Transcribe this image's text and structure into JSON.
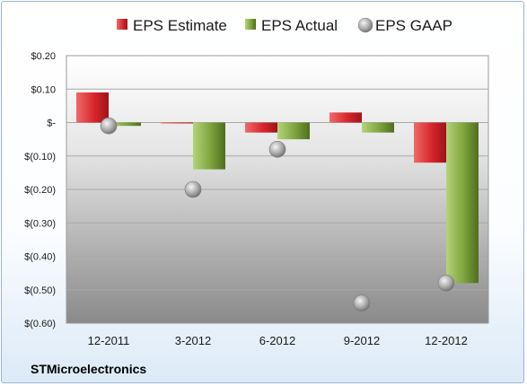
{
  "chart_data": {
    "type": "bar",
    "categories": [
      "12-2011",
      "3-2012",
      "6-2012",
      "9-2012",
      "12-2012"
    ],
    "series": [
      {
        "name": "EPS Estimate",
        "values": [
          0.09,
          0.0,
          -0.03,
          0.03,
          -0.12
        ],
        "color": "#d7262c"
      },
      {
        "name": "EPS Actual",
        "values": [
          -0.01,
          -0.14,
          -0.05,
          -0.03,
          -0.48
        ],
        "color": "#7ea33c"
      },
      {
        "name": "EPS GAAP",
        "values": [
          -0.01,
          -0.2,
          -0.08,
          -0.54,
          -0.48
        ],
        "color": "#a9a9a9",
        "style": "marker"
      }
    ],
    "yticks": [
      "$0.20",
      "$0.10",
      "$-",
      "$(0.10)",
      "$(0.20)",
      "$(0.30)",
      "$(0.40)",
      "$(0.50)",
      "$(0.60)"
    ],
    "ylim": [
      -0.6,
      0.2
    ],
    "grid": true,
    "legend": "top",
    "company": "STMicroelectronics"
  }
}
